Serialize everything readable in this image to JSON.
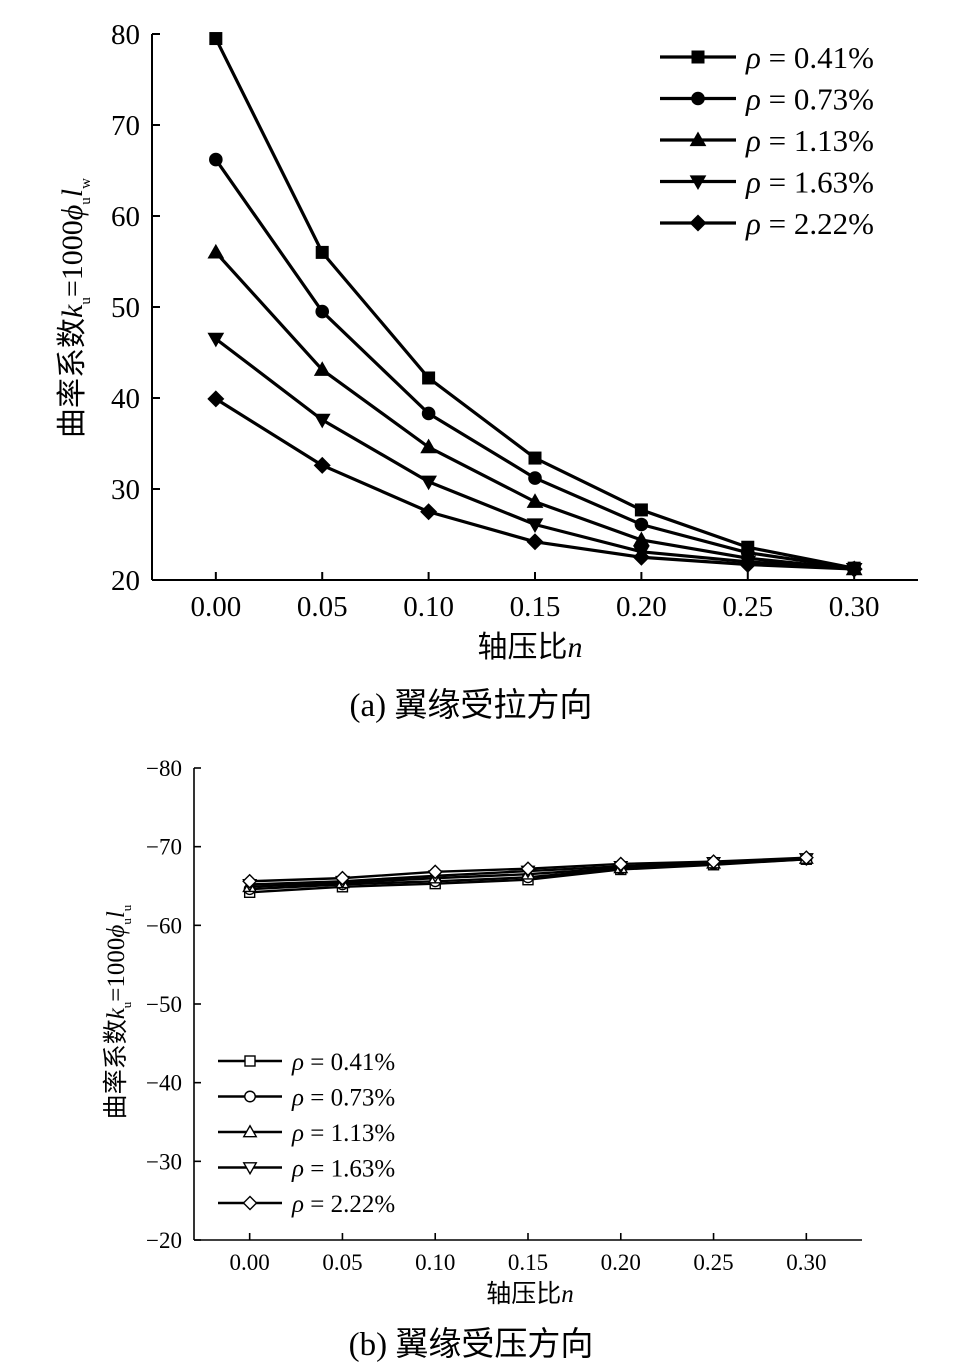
{
  "chart_data": [
    {
      "type": "line",
      "caption": "(a)  翼缘受拉方向",
      "xlabel": "轴压比",
      "xlabel_var": "n",
      "ylabel": "曲率系数",
      "ylabel_formula": "k",
      "ylabel_formula_sub": "u",
      "ylabel_formula_rest": "=1000",
      "ylabel_phi": "ϕ",
      "ylabel_phi_sub": "u",
      "ylabel_l": "l",
      "ylabel_l_sub": "w",
      "x": [
        0.0,
        0.05,
        0.1,
        0.15,
        0.2,
        0.25,
        0.3
      ],
      "xtick_labels": [
        "0.00",
        "0.05",
        "0.10",
        "0.15",
        "0.20",
        "0.25",
        "0.30"
      ],
      "xlim": [
        -0.03,
        0.33
      ],
      "ylim": [
        20,
        80
      ],
      "ytick_values": [
        20,
        30,
        40,
        50,
        60,
        70,
        80
      ],
      "ytick_labels": [
        "20",
        "30",
        "40",
        "50",
        "60",
        "70",
        "80"
      ],
      "legend_position": "top-right",
      "marker_fill": "filled",
      "series": [
        {
          "name": "ρ = 0.41%",
          "symbol": "ρ",
          "label": " = 0.41%",
          "marker": "square",
          "values": [
            79.5,
            56.0,
            42.2,
            33.4,
            27.7,
            23.6,
            21.3
          ]
        },
        {
          "name": "ρ = 0.73%",
          "symbol": "ρ",
          "label": " = 0.73%",
          "marker": "circle",
          "values": [
            66.2,
            49.5,
            38.3,
            31.2,
            26.1,
            23.0,
            21.3
          ]
        },
        {
          "name": "ρ = 1.13%",
          "symbol": "ρ",
          "label": " = 1.13%",
          "marker": "triangle-up",
          "values": [
            56.0,
            43.1,
            34.6,
            28.6,
            24.4,
            22.4,
            21.2
          ]
        },
        {
          "name": "ρ = 1.63%",
          "symbol": "ρ",
          "label": " = 1.63%",
          "marker": "triangle-down",
          "values": [
            46.5,
            37.6,
            30.8,
            26.1,
            23.1,
            22.0,
            21.2
          ]
        },
        {
          "name": "ρ = 2.22%",
          "symbol": "ρ",
          "label": " = 2.22%",
          "marker": "diamond",
          "values": [
            39.9,
            32.6,
            27.5,
            24.2,
            22.5,
            21.7,
            21.2
          ]
        }
      ]
    },
    {
      "type": "line",
      "caption": "(b)  翼缘受压方向",
      "xlabel": "轴压比",
      "xlabel_var": "n",
      "ylabel": "曲率系数",
      "ylabel_formula": "k",
      "ylabel_formula_sub": "u",
      "ylabel_formula_rest": "=1000",
      "ylabel_phi": "ϕ",
      "ylabel_phi_sub": "u",
      "ylabel_l": "l",
      "ylabel_l_sub": "u",
      "x": [
        0.0,
        0.05,
        0.1,
        0.15,
        0.2,
        0.25,
        0.3
      ],
      "xtick_labels": [
        "0.00",
        "0.05",
        "0.10",
        "0.15",
        "0.20",
        "0.25",
        "0.30"
      ],
      "xlim": [
        -0.03,
        0.33
      ],
      "ylim": [
        -20,
        -80
      ],
      "ytick_values": [
        -20,
        -30,
        -40,
        -50,
        -60,
        -70,
        -80
      ],
      "ytick_labels": [
        "−20",
        "−30",
        "−40",
        "−50",
        "−60",
        "−70",
        "−80"
      ],
      "legend_position": "bottom-left",
      "marker_fill": "hollow",
      "series": [
        {
          "name": "ρ = 0.41%",
          "symbol": "ρ",
          "label": " = 0.41%",
          "marker": "square",
          "values": [
            -64.2,
            -64.9,
            -65.3,
            -65.8,
            -67.1,
            -67.7,
            -68.4
          ]
        },
        {
          "name": "ρ = 0.73%",
          "symbol": "ρ",
          "label": " = 0.73%",
          "marker": "circle",
          "values": [
            -64.6,
            -65.2,
            -65.6,
            -66.1,
            -67.2,
            -67.8,
            -68.4
          ]
        },
        {
          "name": "ρ = 1.13%",
          "symbol": "ρ",
          "label": " = 1.13%",
          "marker": "triangle-up",
          "values": [
            -64.9,
            -65.4,
            -66.0,
            -66.5,
            -67.3,
            -67.9,
            -68.5
          ]
        },
        {
          "name": "ρ = 1.63%",
          "symbol": "ρ",
          "label": " = 1.63%",
          "marker": "triangle-down",
          "values": [
            -65.2,
            -65.6,
            -66.3,
            -66.9,
            -67.5,
            -68.0,
            -68.5
          ]
        },
        {
          "name": "ρ = 2.22%",
          "symbol": "ρ",
          "label": " = 2.22%",
          "marker": "diamond",
          "values": [
            -65.6,
            -66.0,
            -66.8,
            -67.2,
            -67.8,
            -68.1,
            -68.6
          ]
        }
      ]
    }
  ],
  "colors": {
    "line": "#000000",
    "background": "#ffffff"
  }
}
